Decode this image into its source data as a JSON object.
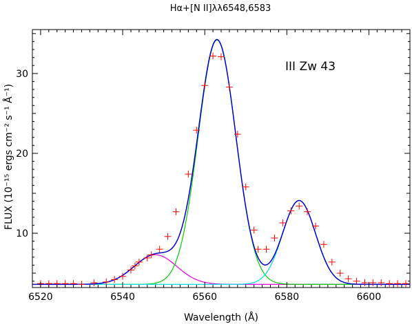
{
  "chart_data": {
    "type": "line",
    "title": "Hα+[N II]λλ6548,6583",
    "xlabel": "Wavelength (Å)",
    "ylabel": "FLUX (10⁻¹⁵ ergs cm⁻² s⁻¹ Å⁻¹)",
    "annotation": "III Zw 43",
    "xlim": [
      6518,
      6610
    ],
    "ylim": [
      3.2,
      35.5
    ],
    "x_ticks": [
      6520,
      6540,
      6560,
      6580,
      6600
    ],
    "y_ticks": [
      10,
      20,
      30
    ],
    "grid": false,
    "baseline": 3.6,
    "components": [
      {
        "name": "",
        "center": 6548,
        "amplitude": 3.7,
        "sigma": 5.2,
        "color": "#dd00dd"
      },
      {
        "name": "",
        "center": 6563,
        "amplitude": 30.6,
        "sigma": 4.6,
        "color": "#00cc00"
      },
      {
        "name": "",
        "center": 6583,
        "amplitude": 10.5,
        "sigma": 4.0,
        "color": "#00dddd"
      }
    ],
    "series": [
      {
        "name": "",
        "style": "markers",
        "color": "#ff0000",
        "x": [
          6520,
          6522,
          6524,
          6526,
          6528,
          6530,
          6533,
          6536,
          6538,
          6540,
          6542,
          6543,
          6544,
          6546,
          6547,
          6549,
          6551,
          6553,
          6556,
          6558,
          6560,
          6562,
          6564,
          6566,
          6568,
          6570,
          6572,
          6573,
          6575,
          6577,
          6579,
          6581,
          6583,
          6585,
          6587,
          6589,
          6591,
          6593,
          6595,
          6597,
          6599,
          6601,
          6603,
          6605,
          6607,
          6609
        ],
        "y": [
          3.7,
          3.7,
          3.7,
          3.7,
          3.7,
          3.6,
          3.8,
          3.9,
          4.2,
          4.6,
          5.4,
          5.9,
          6.4,
          6.9,
          7.3,
          8.0,
          9.6,
          12.7,
          17.4,
          22.9,
          28.5,
          32.2,
          32.1,
          28.3,
          22.4,
          15.8,
          10.4,
          8.0,
          8.0,
          9.4,
          11.3,
          12.8,
          13.4,
          12.7,
          10.9,
          8.6,
          6.4,
          5.0,
          4.3,
          4.0,
          3.8,
          3.8,
          3.8,
          3.7,
          3.7,
          3.7
        ]
      },
      {
        "name": "",
        "style": "line",
        "color": "#0000cc",
        "role": "total fit"
      }
    ]
  }
}
